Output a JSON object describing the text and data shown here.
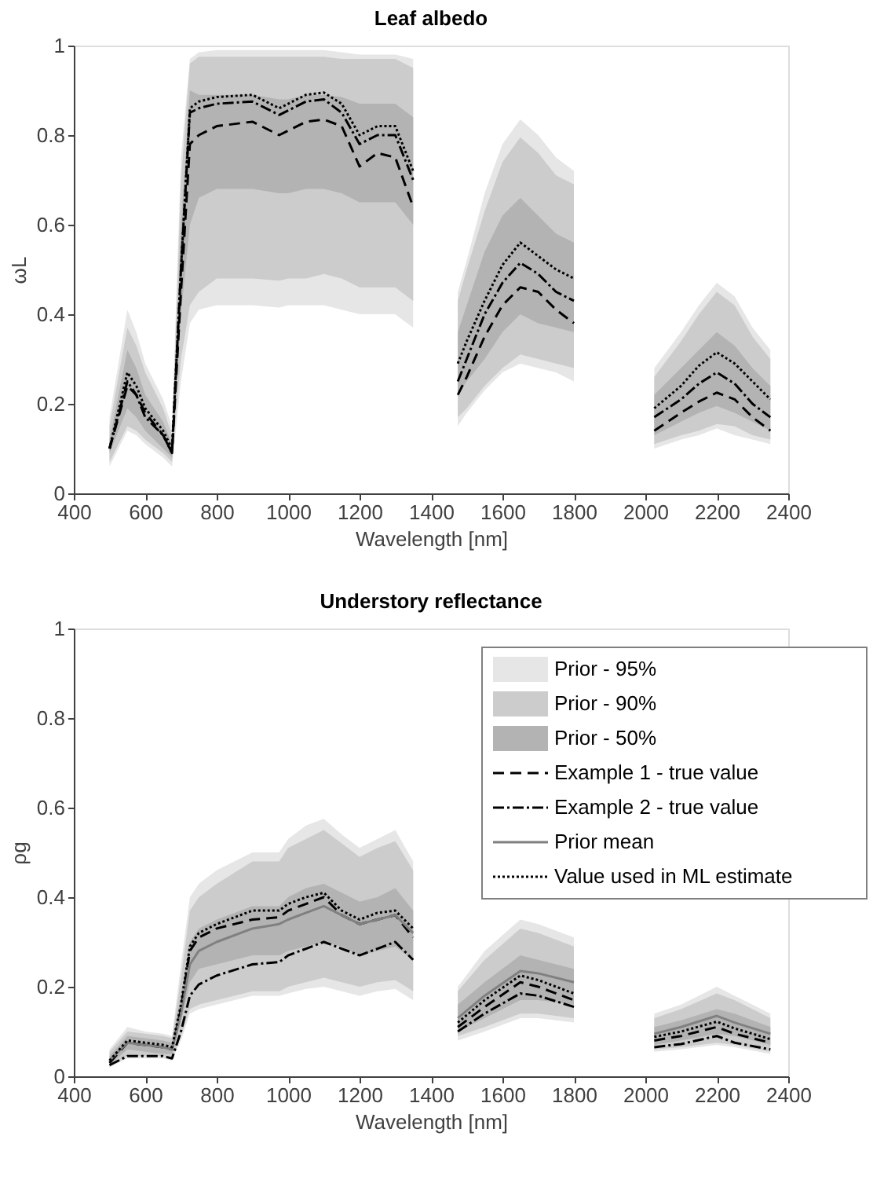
{
  "chart_data": [
    {
      "type": "line",
      "title": "Leaf albedo",
      "xlabel": "Wavelength [nm]",
      "ylabel": "ωL",
      "xlim": [
        400,
        2400
      ],
      "xticks": [
        400,
        600,
        800,
        1000,
        1200,
        1400,
        1600,
        1800,
        2000,
        2200,
        2400
      ],
      "ylim": [
        0,
        1
      ],
      "yticks": [
        0,
        0.2,
        0.4,
        0.6,
        0.8,
        1
      ],
      "grid": false,
      "legend": false,
      "x": [
        500,
        550,
        575,
        600,
        650,
        675,
        700,
        725,
        750,
        800,
        900,
        975,
        1000,
        1050,
        1100,
        1150,
        1200,
        1250,
        1300,
        1350,
        1400,
        1475,
        1500,
        1550,
        1600,
        1650,
        1700,
        1750,
        1800,
        1900,
        2025,
        2100,
        2150,
        2200,
        2250,
        2300,
        2350
      ],
      "series": [
        {
          "type": "area",
          "color": "#e6e6e6",
          "values": [
            null,
            null,
            null,
            null,
            null,
            null,
            null,
            null,
            null,
            null,
            null,
            null,
            null,
            null,
            null,
            null,
            null,
            null,
            null,
            null,
            null,
            null,
            null,
            null,
            null,
            null,
            null,
            null,
            null,
            null,
            null,
            null,
            null,
            null,
            null,
            null,
            null
          ],
          "lower": [
            0.06,
            0.14,
            0.13,
            0.11,
            0.08,
            0.06,
            0.25,
            0.38,
            0.41,
            0.42,
            0.42,
            0.415,
            0.42,
            0.42,
            0.42,
            0.41,
            0.4,
            0.4,
            0.4,
            0.37,
            null,
            0.15,
            0.18,
            0.23,
            0.27,
            0.29,
            0.28,
            0.27,
            0.25,
            null,
            0.1,
            0.12,
            0.13,
            0.145,
            0.13,
            0.12,
            0.11
          ],
          "upper": [
            0.17,
            0.41,
            0.36,
            0.29,
            0.21,
            0.15,
            0.75,
            0.97,
            0.985,
            0.99,
            0.99,
            0.99,
            0.99,
            0.99,
            0.99,
            0.985,
            0.98,
            0.98,
            0.98,
            0.97,
            null,
            0.45,
            0.52,
            0.67,
            0.78,
            0.835,
            0.8,
            0.75,
            0.72,
            null,
            0.28,
            0.36,
            0.42,
            0.47,
            0.44,
            0.37,
            0.32
          ]
        },
        {
          "type": "area",
          "color": "#cccccc",
          "values": [
            null,
            null,
            null,
            null,
            null,
            null,
            null,
            null,
            null,
            null,
            null,
            null,
            null,
            null,
            null,
            null,
            null,
            null,
            null,
            null,
            null,
            null,
            null,
            null,
            null,
            null,
            null,
            null,
            null,
            null,
            null,
            null,
            null,
            null,
            null,
            null,
            null
          ],
          "lower": [
            0.07,
            0.15,
            0.14,
            0.12,
            0.09,
            0.07,
            0.3,
            0.42,
            0.45,
            0.48,
            0.48,
            0.475,
            0.48,
            0.48,
            0.49,
            0.48,
            0.46,
            0.46,
            0.46,
            0.43,
            null,
            0.17,
            0.19,
            0.24,
            0.28,
            0.31,
            0.3,
            0.29,
            0.28,
            null,
            0.11,
            0.13,
            0.14,
            0.155,
            0.15,
            0.13,
            0.12
          ],
          "upper": [
            0.15,
            0.37,
            0.33,
            0.27,
            0.19,
            0.13,
            0.7,
            0.96,
            0.975,
            0.975,
            0.975,
            0.975,
            0.975,
            0.975,
            0.975,
            0.97,
            0.97,
            0.97,
            0.97,
            0.95,
            null,
            0.43,
            0.5,
            0.63,
            0.74,
            0.795,
            0.76,
            0.71,
            0.69,
            null,
            0.26,
            0.34,
            0.4,
            0.45,
            0.42,
            0.35,
            0.3
          ]
        },
        {
          "type": "area",
          "color": "#b3b3b3",
          "values": [
            null,
            null,
            null,
            null,
            null,
            null,
            null,
            null,
            null,
            null,
            null,
            null,
            null,
            null,
            null,
            null,
            null,
            null,
            null,
            null,
            null,
            null,
            null,
            null,
            null,
            null,
            null,
            null,
            null,
            null,
            null,
            null,
            null,
            null,
            null,
            null,
            null
          ],
          "lower": [
            0.09,
            0.19,
            0.17,
            0.14,
            0.1,
            0.08,
            0.4,
            0.6,
            0.66,
            0.68,
            0.68,
            0.67,
            0.67,
            0.68,
            0.68,
            0.67,
            0.65,
            0.65,
            0.65,
            0.6,
            null,
            0.22,
            0.25,
            0.3,
            0.36,
            0.4,
            0.38,
            0.37,
            0.36,
            null,
            0.13,
            0.16,
            0.18,
            0.195,
            0.18,
            0.16,
            0.14
          ],
          "upper": [
            0.12,
            0.32,
            0.28,
            0.22,
            0.16,
            0.11,
            0.6,
            0.9,
            0.89,
            0.89,
            0.89,
            0.88,
            0.88,
            0.89,
            0.89,
            0.885,
            0.87,
            0.87,
            0.87,
            0.84,
            null,
            0.36,
            0.42,
            0.54,
            0.62,
            0.66,
            0.62,
            0.58,
            0.56,
            null,
            0.22,
            0.28,
            0.32,
            0.36,
            0.33,
            0.28,
            0.24
          ]
        },
        {
          "type": "line",
          "color": "#000000",
          "line_style": "dashed",
          "values": [
            0.1,
            0.24,
            0.22,
            0.18,
            0.13,
            0.09,
            0.45,
            0.78,
            0.8,
            0.82,
            0.83,
            0.8,
            0.81,
            0.83,
            0.835,
            0.82,
            0.73,
            0.76,
            0.75,
            0.64,
            null,
            0.22,
            0.26,
            0.35,
            0.42,
            0.46,
            0.45,
            0.41,
            0.38,
            null,
            0.14,
            0.18,
            0.205,
            0.225,
            0.21,
            0.17,
            0.14
          ]
        },
        {
          "type": "line",
          "color": "#000000",
          "line_style": "dashdot",
          "values": [
            0.1,
            0.25,
            0.22,
            0.17,
            0.13,
            0.09,
            0.5,
            0.85,
            0.86,
            0.87,
            0.875,
            0.845,
            0.855,
            0.875,
            0.88,
            0.85,
            0.78,
            0.8,
            0.8,
            0.7,
            null,
            0.25,
            0.3,
            0.4,
            0.47,
            0.515,
            0.49,
            0.45,
            0.43,
            null,
            0.17,
            0.21,
            0.245,
            0.27,
            0.245,
            0.2,
            0.17
          ]
        },
        {
          "type": "line",
          "color": "#000000",
          "line_style": "dotted",
          "values": [
            0.1,
            0.27,
            0.24,
            0.19,
            0.14,
            0.1,
            0.5,
            0.86,
            0.875,
            0.885,
            0.89,
            0.86,
            0.87,
            0.89,
            0.895,
            0.87,
            0.8,
            0.82,
            0.82,
            0.72,
            null,
            0.29,
            0.34,
            0.43,
            0.51,
            0.56,
            0.53,
            0.5,
            0.48,
            null,
            0.19,
            0.24,
            0.285,
            0.315,
            0.29,
            0.25,
            0.21
          ]
        }
      ]
    },
    {
      "type": "line",
      "title": "Understory reflectance",
      "xlabel": "Wavelength [nm]",
      "ylabel": "ρg",
      "xlim": [
        400,
        2400
      ],
      "xticks": [
        400,
        600,
        800,
        1000,
        1200,
        1400,
        1600,
        1800,
        2000,
        2200,
        2400
      ],
      "ylim": [
        0,
        1
      ],
      "yticks": [
        0,
        0.2,
        0.4,
        0.6,
        0.8,
        1
      ],
      "grid": false,
      "legend": "top right",
      "x": [
        500,
        550,
        600,
        650,
        675,
        700,
        725,
        750,
        800,
        900,
        975,
        1000,
        1050,
        1100,
        1150,
        1200,
        1250,
        1300,
        1350,
        1400,
        1475,
        1550,
        1650,
        1700,
        1800,
        1900,
        2025,
        2100,
        2200,
        2250,
        2350
      ],
      "series": [
        {
          "name": "Prior - 95%",
          "type": "area",
          "color": "#e6e6e6",
          "values": [
            null,
            null,
            null,
            null,
            null,
            null,
            null,
            null,
            null,
            null,
            null,
            null,
            null,
            null,
            null,
            null,
            null,
            null,
            null,
            null,
            null,
            null,
            null,
            null,
            null,
            null,
            null,
            null,
            null,
            null,
            null
          ],
          "lower": [
            0.02,
            0.04,
            0.04,
            0.04,
            0.035,
            0.08,
            0.14,
            0.15,
            0.16,
            0.18,
            0.18,
            0.185,
            0.195,
            0.2,
            0.19,
            0.18,
            0.19,
            0.195,
            0.17,
            null,
            0.08,
            0.1,
            0.13,
            0.13,
            0.12,
            null,
            0.055,
            0.06,
            0.07,
            0.065,
            0.05
          ],
          "upper": [
            0.06,
            0.11,
            0.1,
            0.095,
            0.09,
            0.25,
            0.4,
            0.43,
            0.46,
            0.5,
            0.5,
            0.53,
            0.56,
            0.575,
            0.54,
            0.51,
            0.53,
            0.55,
            0.48,
            null,
            0.2,
            0.28,
            0.35,
            0.34,
            0.31,
            null,
            0.14,
            0.16,
            0.2,
            0.18,
            0.14
          ]
        },
        {
          "name": "Prior - 90%",
          "type": "area",
          "color": "#cccccc",
          "values": [
            null,
            null,
            null,
            null,
            null,
            null,
            null,
            null,
            null,
            null,
            null,
            null,
            null,
            null,
            null,
            null,
            null,
            null,
            null,
            null,
            null,
            null,
            null,
            null,
            null,
            null,
            null,
            null,
            null,
            null,
            null
          ],
          "lower": [
            0.02,
            0.045,
            0.045,
            0.045,
            0.04,
            0.09,
            0.15,
            0.16,
            0.17,
            0.19,
            0.19,
            0.2,
            0.21,
            0.22,
            0.21,
            0.2,
            0.21,
            0.215,
            0.19,
            null,
            0.09,
            0.11,
            0.14,
            0.14,
            0.13,
            null,
            0.06,
            0.065,
            0.075,
            0.07,
            0.055
          ],
          "upper": [
            0.055,
            0.1,
            0.095,
            0.09,
            0.085,
            0.22,
            0.37,
            0.4,
            0.43,
            0.48,
            0.48,
            0.51,
            0.53,
            0.55,
            0.52,
            0.49,
            0.51,
            0.525,
            0.46,
            null,
            0.19,
            0.26,
            0.33,
            0.32,
            0.29,
            null,
            0.13,
            0.15,
            0.185,
            0.17,
            0.13
          ]
        },
        {
          "name": "Prior - 50%",
          "type": "area",
          "color": "#b3b3b3",
          "values": [
            null,
            null,
            null,
            null,
            null,
            null,
            null,
            null,
            null,
            null,
            null,
            null,
            null,
            null,
            null,
            null,
            null,
            null,
            null,
            null,
            null,
            null,
            null,
            null,
            null,
            null,
            null,
            null,
            null,
            null,
            null
          ],
          "lower": [
            0.025,
            0.06,
            0.055,
            0.05,
            0.05,
            0.12,
            0.21,
            0.24,
            0.25,
            0.27,
            0.27,
            0.28,
            0.29,
            0.3,
            0.29,
            0.27,
            0.28,
            0.29,
            0.26,
            null,
            0.1,
            0.13,
            0.17,
            0.17,
            0.16,
            null,
            0.07,
            0.08,
            0.095,
            0.09,
            0.07
          ],
          "upper": [
            0.045,
            0.09,
            0.085,
            0.08,
            0.075,
            0.18,
            0.3,
            0.33,
            0.35,
            0.38,
            0.38,
            0.4,
            0.42,
            0.43,
            0.41,
            0.39,
            0.4,
            0.42,
            0.37,
            null,
            0.16,
            0.21,
            0.27,
            0.26,
            0.24,
            null,
            0.11,
            0.125,
            0.15,
            0.14,
            0.11
          ]
        },
        {
          "name": "Example 1 - true value",
          "type": "line",
          "color": "#000000",
          "line_style": "dashed",
          "values": [
            0.03,
            0.075,
            0.07,
            0.065,
            0.06,
            0.15,
            0.28,
            0.31,
            0.33,
            0.35,
            0.355,
            0.37,
            0.385,
            0.4,
            0.36,
            0.34,
            0.35,
            0.36,
            0.31,
            null,
            0.11,
            0.155,
            0.21,
            0.2,
            0.17,
            null,
            0.08,
            0.09,
            0.11,
            0.095,
            0.075
          ]
        },
        {
          "name": "Example 2 - true value",
          "type": "line",
          "color": "#000000",
          "line_style": "dashdot",
          "values": [
            0.025,
            0.045,
            0.045,
            0.045,
            0.04,
            0.1,
            0.18,
            0.205,
            0.225,
            0.25,
            0.255,
            0.27,
            0.285,
            0.3,
            0.285,
            0.27,
            0.285,
            0.3,
            0.26,
            null,
            0.1,
            0.14,
            0.185,
            0.18,
            0.155,
            null,
            0.065,
            0.072,
            0.09,
            0.075,
            0.06
          ]
        },
        {
          "name": "Prior mean",
          "type": "line",
          "color": "#808080",
          "line_style": "solid",
          "values": [
            0.035,
            0.075,
            0.07,
            0.065,
            0.06,
            0.14,
            0.25,
            0.28,
            0.3,
            0.33,
            0.34,
            0.35,
            0.365,
            0.38,
            0.36,
            0.34,
            0.35,
            0.36,
            0.32,
            null,
            0.13,
            0.18,
            0.235,
            0.23,
            0.21,
            null,
            0.095,
            0.11,
            0.135,
            0.12,
            0.095
          ]
        },
        {
          "name": "Value used in ML estimate",
          "type": "line",
          "color": "#000000",
          "line_style": "dotted",
          "values": [
            0.035,
            0.08,
            0.075,
            0.07,
            0.065,
            0.16,
            0.29,
            0.32,
            0.34,
            0.37,
            0.37,
            0.385,
            0.4,
            0.41,
            0.37,
            0.35,
            0.365,
            0.37,
            0.33,
            null,
            0.12,
            0.17,
            0.225,
            0.215,
            0.185,
            null,
            0.088,
            0.1,
            0.122,
            0.107,
            0.083
          ]
        }
      ]
    }
  ]
}
